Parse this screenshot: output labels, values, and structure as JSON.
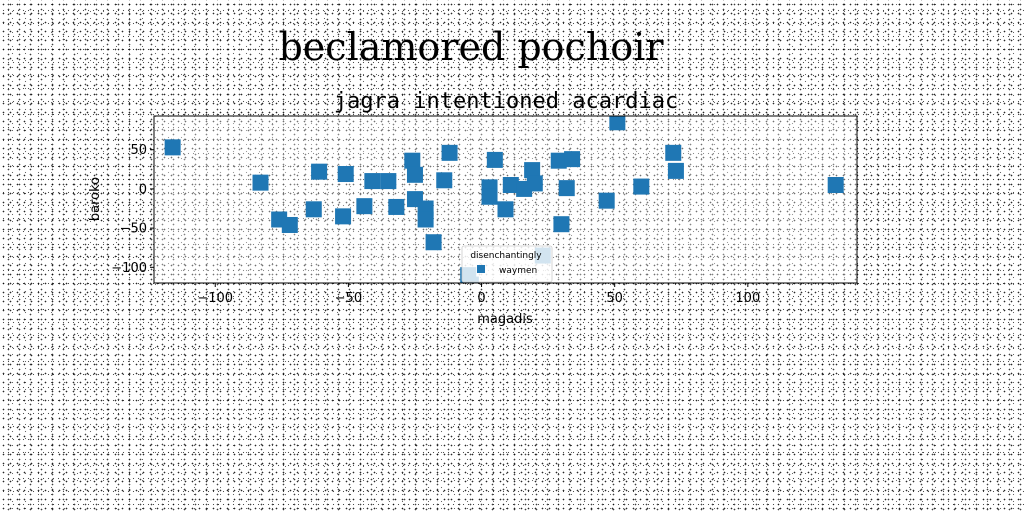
{
  "figure": {
    "suptitle": "beclamored pochoir"
  },
  "chart_data": {
    "type": "scatter",
    "title": "jagra intentioned acardiac",
    "xlabel": "magadis",
    "ylabel": "baroko",
    "xlim": [
      -123,
      141
    ],
    "ylim": [
      -120,
      93
    ],
    "xticks": [
      -100,
      -50,
      0,
      50,
      100
    ],
    "yticks": [
      -100,
      -50,
      0,
      50
    ],
    "xtick_labels": [
      "−100",
      "−50",
      "0",
      "50",
      "100"
    ],
    "ytick_labels": [
      "−100",
      "−50",
      "0",
      "50"
    ],
    "grid": false,
    "legend": {
      "title": "disenchantingly",
      "placement": "lower-center",
      "entries": [
        "waymen"
      ]
    },
    "series": [
      {
        "name": "waymen",
        "color": "#1f77b4",
        "marker": "square",
        "points": [
          {
            "x": -116,
            "y": 53
          },
          {
            "x": -83,
            "y": 8
          },
          {
            "x": -76,
            "y": -39
          },
          {
            "x": -72,
            "y": -46
          },
          {
            "x": -63,
            "y": -26
          },
          {
            "x": -61,
            "y": 22
          },
          {
            "x": -52,
            "y": -35
          },
          {
            "x": -51,
            "y": 19
          },
          {
            "x": -44,
            "y": -22
          },
          {
            "x": -41,
            "y": 10
          },
          {
            "x": -35,
            "y": 10
          },
          {
            "x": -32,
            "y": -23
          },
          {
            "x": -26,
            "y": 36
          },
          {
            "x": -25,
            "y": 18
          },
          {
            "x": -25,
            "y": -13
          },
          {
            "x": -21,
            "y": -25
          },
          {
            "x": -21,
            "y": -39
          },
          {
            "x": -18,
            "y": -68
          },
          {
            "x": -14,
            "y": 11
          },
          {
            "x": -12,
            "y": 46
          },
          {
            "x": 3,
            "y": 2
          },
          {
            "x": 3,
            "y": -10
          },
          {
            "x": 5,
            "y": 37
          },
          {
            "x": 9,
            "y": -26
          },
          {
            "x": 11,
            "y": 5
          },
          {
            "x": 16,
            "y": 0
          },
          {
            "x": 19,
            "y": 24
          },
          {
            "x": 20,
            "y": 7
          },
          {
            "x": 23,
            "y": -85
          },
          {
            "x": 29,
            "y": 36
          },
          {
            "x": 30,
            "y": -45
          },
          {
            "x": 32,
            "y": 1
          },
          {
            "x": 34,
            "y": 38
          },
          {
            "x": 47,
            "y": -15
          },
          {
            "x": 51,
            "y": 85
          },
          {
            "x": 60,
            "y": 3
          },
          {
            "x": 72,
            "y": 46
          },
          {
            "x": 73,
            "y": 23
          },
          {
            "x": 133,
            "y": 5
          },
          {
            "x": -5,
            "y": -110
          },
          {
            "x": -4,
            "y": -122
          }
        ]
      }
    ]
  }
}
